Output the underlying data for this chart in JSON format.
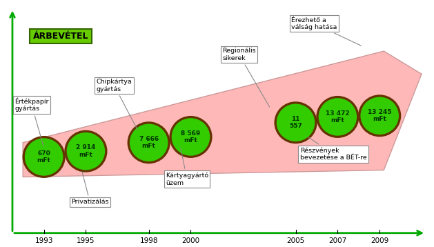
{
  "title": "ÁRBEVÉTEL",
  "title_bg": "#66cc00",
  "title_border": "#336600",
  "bg_color": "#ffffff",
  "axis_color": "#00aa00",
  "years": [
    1993,
    1995,
    1998,
    2000,
    2005,
    2007,
    2009
  ],
  "values": [
    "670\nmFt",
    "2 914\nmFt",
    "7 666\nmFt",
    "8 569\nmFt",
    "11\n557",
    "13 472\nmFt",
    "13 245\nmFt"
  ],
  "circle_color": "#33cc00",
  "circle_edge": "#663300",
  "band_color": "#ffb8b8",
  "band_edge": "#cc9999",
  "xlim": [
    1991.0,
    2011.5
  ],
  "ylim": [
    0.0,
    1.05
  ],
  "xaxis_y": 0.04,
  "yaxis_x": 1991.5
}
